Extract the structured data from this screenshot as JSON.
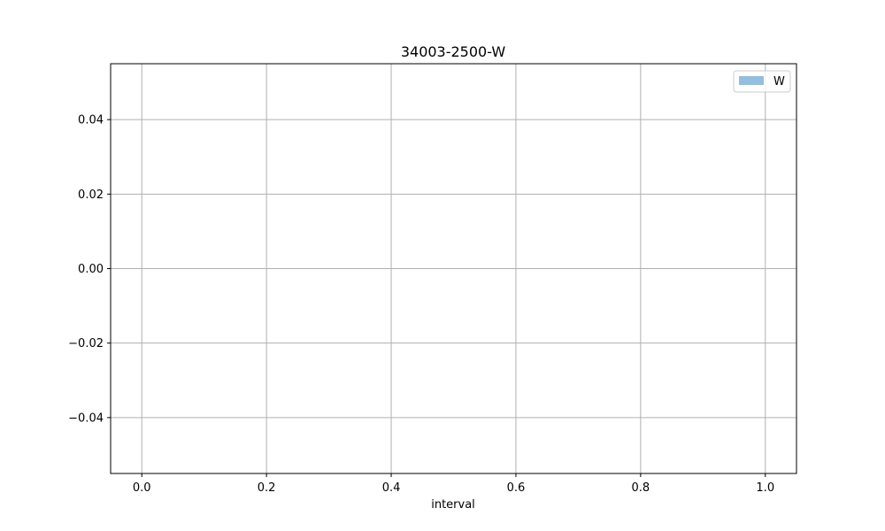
{
  "chart_data": {
    "type": "histogram",
    "title": "34003-2500-W",
    "xlabel": "interval",
    "ylabel": "",
    "xlim": [
      -0.05,
      1.05
    ],
    "ylim": [
      -0.055,
      0.055
    ],
    "x_ticks": [
      0.0,
      0.2,
      0.4,
      0.6,
      0.8,
      1.0
    ],
    "x_tick_labels": [
      "0.0",
      "0.2",
      "0.4",
      "0.6",
      "0.8",
      "1.0"
    ],
    "y_ticks": [
      -0.04,
      -0.02,
      0.0,
      0.02,
      0.04
    ],
    "y_tick_labels": [
      "−0.04",
      "−0.02",
      "0.00",
      "0.02",
      "0.04"
    ],
    "grid": true,
    "legend_position": "top-right",
    "series": [
      {
        "name": "W",
        "color": "#94bedd",
        "values": []
      }
    ]
  }
}
